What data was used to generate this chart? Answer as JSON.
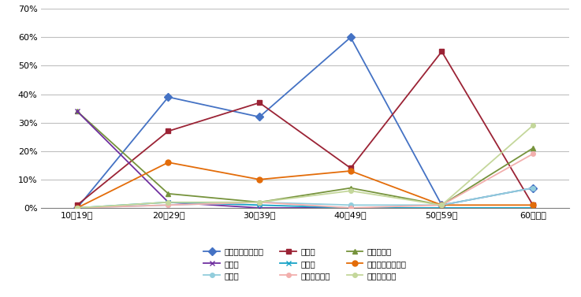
{
  "categories": [
    "10～19歳",
    "20～29歳",
    "30～39歳",
    "40～49歳",
    "50～59歳",
    "60歳以上"
  ],
  "series": [
    {
      "label": "就職・転職・転業",
      "color": "#4472C4",
      "marker": "D",
      "markersize": 5,
      "values": [
        0,
        39,
        32,
        60,
        1,
        7
      ]
    },
    {
      "label": "転　勤",
      "color": "#9B2335",
      "marker": "s",
      "markersize": 5,
      "values": [
        1,
        27,
        37,
        14,
        55,
        1
      ]
    },
    {
      "label": "退職・廃業",
      "color": "#76933C",
      "marker": "^",
      "markersize": 5,
      "values": [
        34,
        5,
        2,
        7,
        1,
        21
      ]
    },
    {
      "label": "就　学",
      "color": "#7030A0",
      "marker": "x",
      "markersize": 5,
      "values": [
        34,
        2,
        0,
        0,
        0,
        0
      ]
    },
    {
      "label": "卒　業",
      "color": "#17A3C7",
      "marker": "x",
      "markersize": 5,
      "values": [
        0,
        2,
        1,
        0,
        0,
        0
      ]
    },
    {
      "label": "結婚・離婚・縁組",
      "color": "#E36C09",
      "marker": "o",
      "markersize": 5,
      "values": [
        0,
        16,
        10,
        13,
        1,
        1
      ]
    },
    {
      "label": "住　宅",
      "color": "#92CDDC",
      "marker": "o",
      "markersize": 4,
      "values": [
        0,
        1,
        2,
        1,
        1,
        7
      ]
    },
    {
      "label": "交通の利便性",
      "color": "#F2AFAD",
      "marker": "o",
      "markersize": 4,
      "values": [
        0,
        1,
        2,
        0,
        1,
        19
      ]
    },
    {
      "label": "生活の利便性",
      "color": "#C4D79B",
      "marker": "o",
      "markersize": 4,
      "values": [
        0,
        2,
        2,
        6,
        1,
        29
      ]
    }
  ],
  "ylim": [
    0,
    70
  ],
  "ytick_step": 10,
  "figsize": [
    7.37,
    3.77
  ],
  "dpi": 100,
  "background_color": "#FFFFFF",
  "grid_color": "#BFBFBF",
  "legend_ncol": 3,
  "legend_fontsize": 7.5,
  "tick_fontsize": 8
}
